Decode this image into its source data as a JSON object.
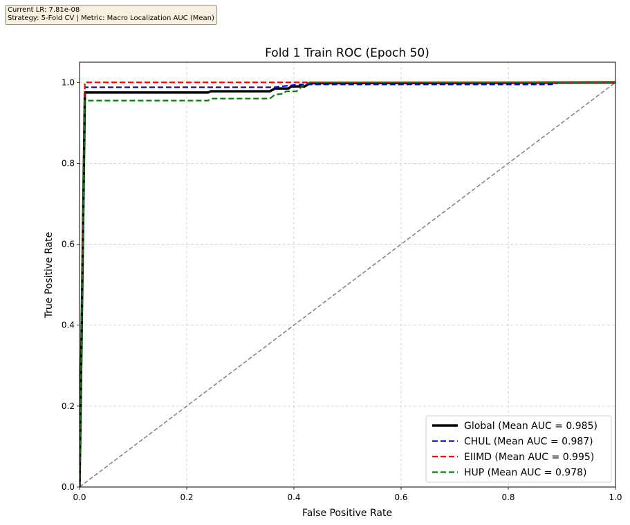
{
  "info_box": {
    "line1": "Current LR: 7.81e-08",
    "line2": "Strategy: 5-Fold CV | Metric: Macro Localization AUC (Mean)"
  },
  "chart_data": {
    "type": "line",
    "title": "Fold 1 Train ROC (Epoch 50)",
    "xlabel": "False Positive Rate",
    "ylabel": "True Positive Rate",
    "xlim": [
      0.0,
      1.0
    ],
    "ylim": [
      0.0,
      1.05
    ],
    "grid": true,
    "legend_position": "lower right",
    "x_ticks": [
      "0.0",
      "0.2",
      "0.4",
      "0.6",
      "0.8",
      "1.0"
    ],
    "y_ticks": [
      "0.0",
      "0.2",
      "0.4",
      "0.6",
      "0.8",
      "1.0"
    ],
    "series": [
      {
        "name": "Global (Mean AUC = 0.985)",
        "color": "#000000",
        "style": "solid",
        "width": 3.5,
        "x": [
          0.0,
          0.01,
          0.24,
          0.245,
          0.355,
          0.365,
          0.39,
          0.395,
          0.42,
          0.43,
          1.0
        ],
        "y": [
          0.0,
          0.975,
          0.975,
          0.978,
          0.978,
          0.985,
          0.985,
          0.99,
          0.99,
          0.998,
          1.0
        ]
      },
      {
        "name": "CHUL (Mean AUC = 0.987)",
        "color": "#0000ff",
        "style": "dashed",
        "width": 2.2,
        "x": [
          0.0,
          0.01,
          0.365,
          0.375,
          0.39,
          0.41,
          0.42,
          0.88,
          0.9,
          1.0
        ],
        "y": [
          0.0,
          0.988,
          0.988,
          0.99,
          0.992,
          0.995,
          0.995,
          0.995,
          1.0,
          1.0
        ]
      },
      {
        "name": "EIIMD (Mean AUC = 0.995)",
        "color": "#ff0000",
        "style": "dashed",
        "width": 2.2,
        "x": [
          0.0,
          0.01,
          1.0
        ],
        "y": [
          0.0,
          1.0,
          1.0
        ]
      },
      {
        "name": "HUP (Mean AUC = 0.978)",
        "color": "#008000",
        "style": "dashed",
        "width": 2.2,
        "x": [
          0.0,
          0.01,
          0.24,
          0.245,
          0.355,
          0.365,
          0.38,
          0.385,
          0.405,
          0.42,
          0.43,
          1.0
        ],
        "y": [
          0.0,
          0.955,
          0.955,
          0.96,
          0.96,
          0.97,
          0.972,
          0.978,
          0.978,
          0.995,
          1.0,
          1.0
        ]
      },
      {
        "name": "chance",
        "color": "#808080",
        "style": "dashed",
        "width": 1.5,
        "x": [
          0.0,
          1.0
        ],
        "y": [
          0.0,
          1.0
        ],
        "in_legend": false
      }
    ]
  }
}
